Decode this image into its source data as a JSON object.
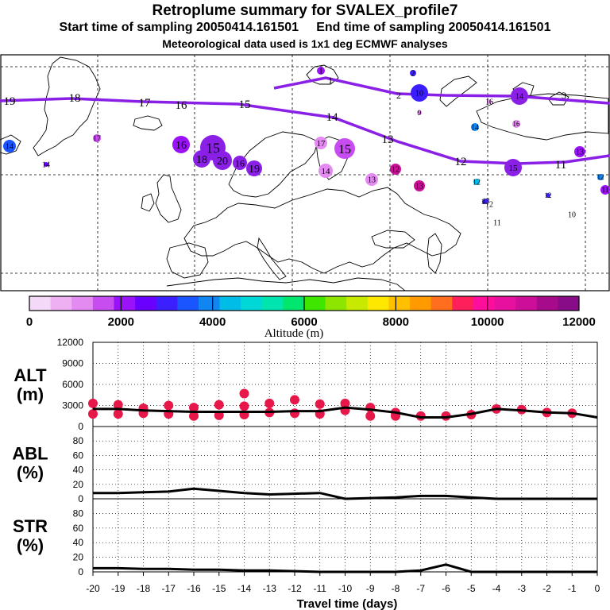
{
  "header": {
    "title": "Retroplume summary for SVALEX_profile7",
    "line2": "Start time of sampling 20050414.161501     End time of sampling 20050414.161501",
    "line3": "Meteorological data used is 1x1 deg ECMWF analyses"
  },
  "colors": {
    "track": "#8a1fe6",
    "line": "#000000",
    "marker": "#e8174a",
    "coast": "#000000",
    "scale": [
      "#f4d9f8",
      "#eeb0f3",
      "#e38bf0",
      "#c84df0",
      "#9a12f8",
      "#6a00ff",
      "#3b1fff",
      "#1a55ff",
      "#0f86f2",
      "#00bde8",
      "#00d8d8",
      "#00e4b0",
      "#00e66e",
      "#3ee600",
      "#8ee600",
      "#c8ea00",
      "#ffe800",
      "#ffc000",
      "#ff9a00",
      "#ff6e1e",
      "#ff1f5a",
      "#ff0e9c",
      "#e8109e",
      "#cc0e98",
      "#a80a8c",
      "#880c88"
    ]
  },
  "map": {
    "track_labels": [
      "19",
      "18",
      "17",
      "16",
      "15",
      "14",
      "13",
      "12",
      "11"
    ],
    "upper_track_labels": [
      "1",
      "2",
      "3"
    ],
    "circle_labels": [
      "17",
      "14",
      "16",
      "15",
      "18",
      "20",
      "16",
      "19",
      "17",
      "15",
      "14",
      "13",
      "12",
      "13",
      "12",
      "12",
      "11",
      "11",
      "10",
      "9",
      "16",
      "14",
      "12",
      "15",
      "13",
      "12",
      "11",
      "14",
      "10",
      "14",
      "1",
      "2",
      "16",
      "13"
    ]
  },
  "colorbar": {
    "ticks": [
      "0",
      "2000",
      "4000",
      "6000",
      "8000",
      "10000",
      "12000"
    ],
    "label": "Altitude (m)"
  },
  "chart_data": [
    {
      "type": "line",
      "panel": "ALT",
      "ylabel_lines": [
        "ALT",
        "(m)"
      ],
      "ylim": [
        0,
        12000
      ],
      "yticks": [
        "12000",
        "9000",
        "6000",
        "3000",
        "0"
      ],
      "x": [
        -20,
        -19,
        -18,
        -17,
        -16,
        -15,
        -14,
        -13,
        -12,
        -11,
        -10,
        -9,
        -8,
        -7,
        -6,
        -5,
        -4,
        -3,
        -2,
        -1,
        0
      ],
      "series": [
        {
          "name": "mean altitude",
          "values": [
            2500,
            2500,
            2300,
            2200,
            2100,
            2100,
            2100,
            2100,
            2200,
            2200,
            2700,
            2400,
            2000,
            1300,
            1300,
            1800,
            2500,
            2300,
            2000,
            1900,
            1300
          ]
        },
        {
          "name": "cluster altitudes",
          "points": [
            [
              -20,
              3300
            ],
            [
              -20,
              1800
            ],
            [
              -19,
              3100
            ],
            [
              -19,
              1800
            ],
            [
              -18,
              2600
            ],
            [
              -18,
              1900
            ],
            [
              -17,
              3000
            ],
            [
              -17,
              1800
            ],
            [
              -16,
              2700
            ],
            [
              -16,
              1500
            ],
            [
              -15,
              3100
            ],
            [
              -15,
              1600
            ],
            [
              -14,
              4700
            ],
            [
              -14,
              2900
            ],
            [
              -14,
              1700
            ],
            [
              -13,
              3300
            ],
            [
              -13,
              2000
            ],
            [
              -12,
              3800
            ],
            [
              -12,
              1900
            ],
            [
              -11,
              3200
            ],
            [
              -11,
              1800
            ],
            [
              -10,
              3300
            ],
            [
              -10,
              2300
            ],
            [
              -9,
              2700
            ],
            [
              -9,
              1500
            ],
            [
              -8,
              2000
            ],
            [
              -8,
              1500
            ],
            [
              -7,
              1500
            ],
            [
              -6,
              1500
            ],
            [
              -5,
              1700
            ],
            [
              -4,
              2500
            ],
            [
              -3,
              2400
            ],
            [
              -2,
              2000
            ],
            [
              -1,
              1900
            ]
          ]
        }
      ]
    },
    {
      "type": "line",
      "panel": "ABL",
      "ylabel_lines": [
        "ABL",
        "(%)"
      ],
      "ylim": [
        0,
        100
      ],
      "yticks": [
        "80",
        "60",
        "40",
        "20",
        "0"
      ],
      "x": [
        -20,
        -19,
        -18,
        -17,
        -16,
        -15,
        -14,
        -13,
        -12,
        -11,
        -10,
        -9,
        -8,
        -7,
        -6,
        -5,
        -4,
        -3,
        -2,
        -1,
        0
      ],
      "series": [
        {
          "name": "ABL fraction",
          "values": [
            8,
            8,
            9,
            10,
            14,
            11,
            8,
            6,
            7,
            8,
            0,
            1,
            2,
            4,
            4,
            2,
            0,
            0,
            0,
            0,
            0
          ]
        }
      ]
    },
    {
      "type": "line",
      "panel": "STR",
      "ylabel_lines": [
        "STR",
        "(%)"
      ],
      "ylim": [
        0,
        100
      ],
      "yticks": [
        "80",
        "60",
        "40",
        "20",
        "0"
      ],
      "x": [
        -20,
        -19,
        -18,
        -17,
        -16,
        -15,
        -14,
        -13,
        -12,
        -11,
        -10,
        -9,
        -8,
        -7,
        -6,
        -5,
        -4,
        -3,
        -2,
        -1,
        0
      ],
      "xlabel": "Travel time (days)",
      "xticks": [
        "-20",
        "-19",
        "-18",
        "-17",
        "-16",
        "-15",
        "-14",
        "-13",
        "-12",
        "-11",
        "-10",
        "-9",
        "-8",
        "-7",
        "-6",
        "-5",
        "-4",
        "-3",
        "-2",
        "-1",
        "0"
      ],
      "series": [
        {
          "name": "stratosphere fraction",
          "values": [
            5,
            5,
            4,
            4,
            3,
            3,
            2,
            2,
            1,
            0,
            0,
            0,
            0,
            2,
            10,
            0,
            0,
            0,
            0,
            0,
            0
          ]
        }
      ]
    }
  ]
}
